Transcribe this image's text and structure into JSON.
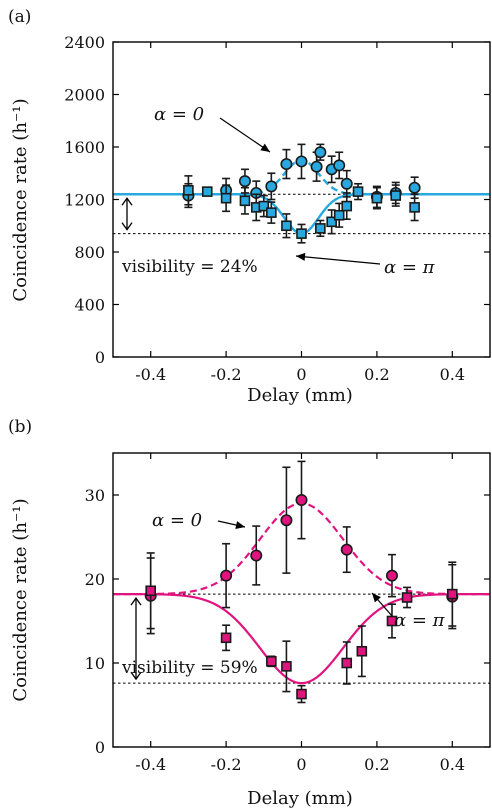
{
  "colors": {
    "panel_a": "#29a8e0",
    "panel_b": "#e0147f",
    "marker_edge": "#1a1a1a",
    "error_bar": "#1a1a1a",
    "reference": "#000000"
  },
  "chart_data": [
    {
      "type": "scatter",
      "panel_label": "(a)",
      "xlabel": "Delay (mm)",
      "ylabel": "Coincidence rate (h⁻¹)",
      "xlim": [
        -0.5,
        0.5
      ],
      "ylim": [
        0,
        2400
      ],
      "xticks": [
        -0.4,
        -0.2,
        0,
        0.2,
        0.4
      ],
      "xtick_labels": [
        "-0.4",
        "-0.2",
        "0",
        "0.2",
        "0.4"
      ],
      "yticks": [
        0,
        400,
        800,
        1200,
        1600,
        2000,
        2400
      ],
      "ytick_labels": [
        "0",
        "400",
        "800",
        "1200",
        "1600",
        "2000",
        "2400"
      ],
      "grid": false,
      "reference_lines": [
        1240,
        940
      ],
      "visibility_label": "visibility = 24%",
      "series": [
        {
          "name": "α = 0",
          "marker": "circle",
          "points": [
            {
              "x": -0.3,
              "y": 1230,
              "err": 90
            },
            {
              "x": -0.2,
              "y": 1270,
              "err": 90
            },
            {
              "x": -0.15,
              "y": 1340,
              "err": 90
            },
            {
              "x": -0.12,
              "y": 1250,
              "err": 90
            },
            {
              "x": -0.08,
              "y": 1300,
              "err": 100
            },
            {
              "x": -0.04,
              "y": 1470,
              "err": 110
            },
            {
              "x": 0.0,
              "y": 1490,
              "err": 130
            },
            {
              "x": 0.04,
              "y": 1450,
              "err": 110
            },
            {
              "x": 0.05,
              "y": 1560,
              "err": 60
            },
            {
              "x": 0.08,
              "y": 1430,
              "err": 100
            },
            {
              "x": 0.1,
              "y": 1460,
              "err": 100
            },
            {
              "x": 0.12,
              "y": 1320,
              "err": 100
            },
            {
              "x": 0.2,
              "y": 1220,
              "err": 80
            },
            {
              "x": 0.25,
              "y": 1250,
              "err": 80
            },
            {
              "x": 0.3,
              "y": 1290,
              "err": 80
            }
          ],
          "fit": {
            "baseline": 1240,
            "amplitude": 260,
            "sigma": 0.045,
            "style": "dashed"
          }
        },
        {
          "name": "α = π",
          "marker": "square",
          "points": [
            {
              "x": -0.3,
              "y": 1270,
              "err": 110
            },
            {
              "x": -0.25,
              "y": 1260,
              "err": 30
            },
            {
              "x": -0.2,
              "y": 1210,
              "err": 100
            },
            {
              "x": -0.15,
              "y": 1190,
              "err": 100
            },
            {
              "x": -0.12,
              "y": 1140,
              "err": 100
            },
            {
              "x": -0.1,
              "y": 1150,
              "err": 80
            },
            {
              "x": -0.08,
              "y": 1100,
              "err": 80
            },
            {
              "x": -0.04,
              "y": 1000,
              "err": 90
            },
            {
              "x": 0.0,
              "y": 940,
              "err": 70
            },
            {
              "x": 0.05,
              "y": 980,
              "err": 60
            },
            {
              "x": 0.08,
              "y": 1030,
              "err": 90
            },
            {
              "x": 0.1,
              "y": 1080,
              "err": 90
            },
            {
              "x": 0.12,
              "y": 1150,
              "err": 100
            },
            {
              "x": 0.15,
              "y": 1260,
              "err": 60
            },
            {
              "x": 0.2,
              "y": 1210,
              "err": 80
            },
            {
              "x": 0.25,
              "y": 1230,
              "err": 80
            },
            {
              "x": 0.3,
              "y": 1140,
              "err": 100
            }
          ],
          "fit": {
            "baseline": 1240,
            "amplitude": -300,
            "sigma": 0.045,
            "style": "solid"
          }
        }
      ]
    },
    {
      "type": "scatter",
      "panel_label": "(b)",
      "xlabel": "Delay (mm)",
      "ylabel": "Coincidence rate (h⁻¹)",
      "xlim": [
        -0.5,
        0.5
      ],
      "ylim": [
        0,
        35
      ],
      "xticks": [
        -0.4,
        -0.2,
        0,
        0.2,
        0.4
      ],
      "xtick_labels": [
        "-0.4",
        "-0.2",
        "0",
        "0.2",
        "0.4"
      ],
      "yticks": [
        0,
        10,
        20,
        30
      ],
      "ytick_labels": [
        "0",
        "10",
        "20",
        "30"
      ],
      "grid": false,
      "reference_lines": [
        18.2,
        7.6
      ],
      "visibility_label": "visibility = 59%",
      "series": [
        {
          "name": "α = 0",
          "marker": "circle",
          "points": [
            {
              "x": -0.4,
              "y": 18.0,
              "err": 4.5
            },
            {
              "x": -0.2,
              "y": 20.4,
              "err": 3.8
            },
            {
              "x": -0.12,
              "y": 22.8,
              "err": 3.5
            },
            {
              "x": -0.04,
              "y": 27.0,
              "err": 6.3
            },
            {
              "x": 0.0,
              "y": 29.4,
              "err": 4.6
            },
            {
              "x": 0.12,
              "y": 23.5,
              "err": 2.7
            },
            {
              "x": 0.24,
              "y": 20.4,
              "err": 2.5
            },
            {
              "x": 0.4,
              "y": 17.9,
              "err": 3.8
            }
          ],
          "fit": {
            "baseline": 18.2,
            "amplitude": 10.8,
            "sigma": 0.11,
            "style": "dashed"
          }
        },
        {
          "name": "α = π",
          "marker": "square",
          "points": [
            {
              "x": -0.4,
              "y": 18.6,
              "err": 4.5
            },
            {
              "x": -0.2,
              "y": 13.0,
              "err": 1.5
            },
            {
              "x": -0.08,
              "y": 10.2,
              "err": 0.6
            },
            {
              "x": -0.04,
              "y": 9.6,
              "err": 3.0
            },
            {
              "x": 0.0,
              "y": 6.3,
              "err": 1.0
            },
            {
              "x": 0.12,
              "y": 10.0,
              "err": 2.5
            },
            {
              "x": 0.16,
              "y": 11.4,
              "err": 3.0
            },
            {
              "x": 0.24,
              "y": 15.0,
              "err": 2.0
            },
            {
              "x": 0.28,
              "y": 17.8,
              "err": 1.2
            },
            {
              "x": 0.4,
              "y": 18.2,
              "err": 3.8
            }
          ],
          "fit": {
            "baseline": 18.2,
            "amplitude": -10.6,
            "sigma": 0.11,
            "style": "solid"
          }
        }
      ]
    }
  ]
}
